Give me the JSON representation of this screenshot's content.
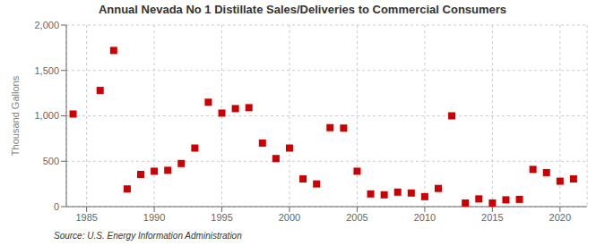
{
  "chart_data": {
    "type": "scatter",
    "title": "Annual Nevada No 1 Distillate Sales/Deliveries to Commercial Consumers",
    "ylabel": "Thousand Gallons",
    "annotations": [
      "Source: U.S. Energy Information Administration"
    ],
    "x": [
      1984,
      1986,
      1987,
      1988,
      1989,
      1990,
      1991,
      1992,
      1993,
      1994,
      1995,
      1996,
      1997,
      1998,
      1999,
      2000,
      2001,
      2002,
      2003,
      2004,
      2005,
      2006,
      2007,
      2008,
      2009,
      2010,
      2011,
      2012,
      2013,
      2014,
      2015,
      2016,
      2017,
      2018,
      2019,
      2020,
      2021
    ],
    "values": [
      1020,
      1280,
      1720,
      195,
      355,
      390,
      400,
      475,
      645,
      1150,
      1030,
      1080,
      1090,
      700,
      530,
      645,
      305,
      250,
      870,
      865,
      390,
      140,
      130,
      160,
      150,
      110,
      200,
      1000,
      40,
      85,
      40,
      75,
      80,
      410,
      375,
      280,
      305
    ],
    "color": "#cc0000",
    "marker": "square",
    "xlim": [
      1983.5,
      2022
    ],
    "xticks": [
      1985,
      1990,
      1995,
      2000,
      2005,
      2010,
      2015,
      2020
    ],
    "ylim": [
      0,
      2000
    ],
    "yticks": [
      0,
      500,
      {
        "value": 1000,
        "label": "1,000"
      },
      {
        "value": 1500,
        "label": "1,500"
      },
      {
        "value": 2000,
        "label": "2,000"
      }
    ],
    "grid": true
  }
}
